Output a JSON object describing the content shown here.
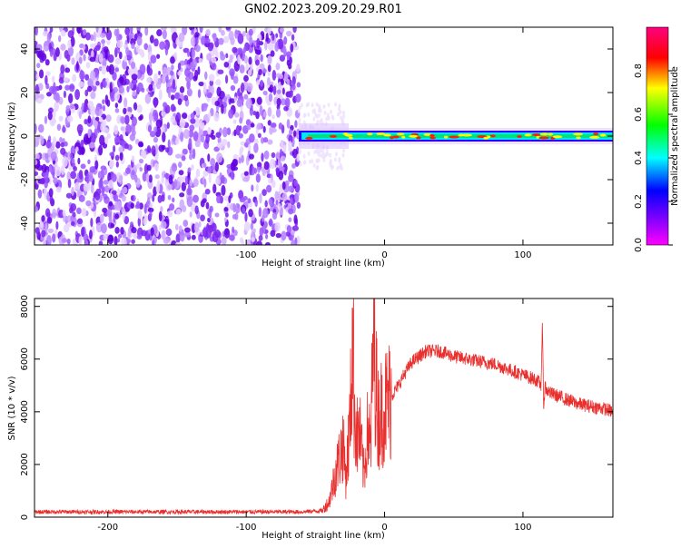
{
  "title": "GN02.2023.209.20.29.R01",
  "chart_data": [
    {
      "type": "heatmap",
      "xlabel": "Height of straight line (km)",
      "ylabel": "Frequency (Hz)",
      "xlim": [
        -253,
        165
      ],
      "ylim": [
        -50,
        50
      ],
      "xticks": [
        -200,
        -100,
        0,
        100
      ],
      "yticks": [
        -40,
        -20,
        0,
        20,
        40
      ],
      "grid": false,
      "colorbar": {
        "label": "Normalized spectral amplitude",
        "range": [
          0,
          1
        ],
        "ticks": [
          0.0,
          0.2,
          0.4,
          0.6,
          0.8
        ],
        "colors": [
          "#ff00ff",
          "#8000ff",
          "#0000ff",
          "#00ffff",
          "#00ff00",
          "#ffff00",
          "#ff0000"
        ]
      },
      "regions": [
        {
          "x": [
            -253,
            -62
          ],
          "description": "broadband noise",
          "amplitude": 0.15
        },
        {
          "x": [
            -62,
            165
          ],
          "description": "narrow band near 0 Hz",
          "center_freq": 0,
          "amplitude": 0.6
        }
      ]
    },
    {
      "type": "line",
      "xlabel": "Height of straight line (km)",
      "ylabel": "SNR (10 * v/v)",
      "xlim": [
        -253,
        165
      ],
      "ylim": [
        0,
        8300
      ],
      "xticks": [
        -200,
        -100,
        0,
        100
      ],
      "yticks": [
        0,
        2000,
        4000,
        6000,
        8000
      ],
      "grid": false,
      "series": [
        {
          "color": "#e8302f",
          "x": [
            -253,
            -200,
            -150,
            -100,
            -60,
            -45,
            -40,
            -35,
            -30,
            -28,
            -25,
            -23,
            -22,
            -20,
            -18,
            -15,
            -12,
            -10,
            -8,
            -5,
            -2,
            0,
            5,
            10,
            15,
            20,
            25,
            30,
            40,
            50,
            60,
            70,
            80,
            90,
            95,
            100,
            105,
            110,
            113,
            114,
            115,
            116,
            117,
            118,
            120,
            130,
            140,
            150,
            160,
            165
          ],
          "y": [
            200,
            200,
            200,
            200,
            200,
            250,
            600,
            1800,
            2800,
            1500,
            3500,
            7200,
            4500,
            3000,
            3200,
            1600,
            3500,
            2500,
            7300,
            3800,
            4000,
            4200,
            4600,
            5000,
            5500,
            5900,
            6100,
            6300,
            6300,
            6100,
            6000,
            5900,
            5800,
            5600,
            5500,
            5400,
            5300,
            5200,
            5000,
            7200,
            4200,
            5000,
            4800,
            4800,
            4700,
            4500,
            4300,
            4200,
            4100,
            4000
          ]
        }
      ]
    }
  ]
}
